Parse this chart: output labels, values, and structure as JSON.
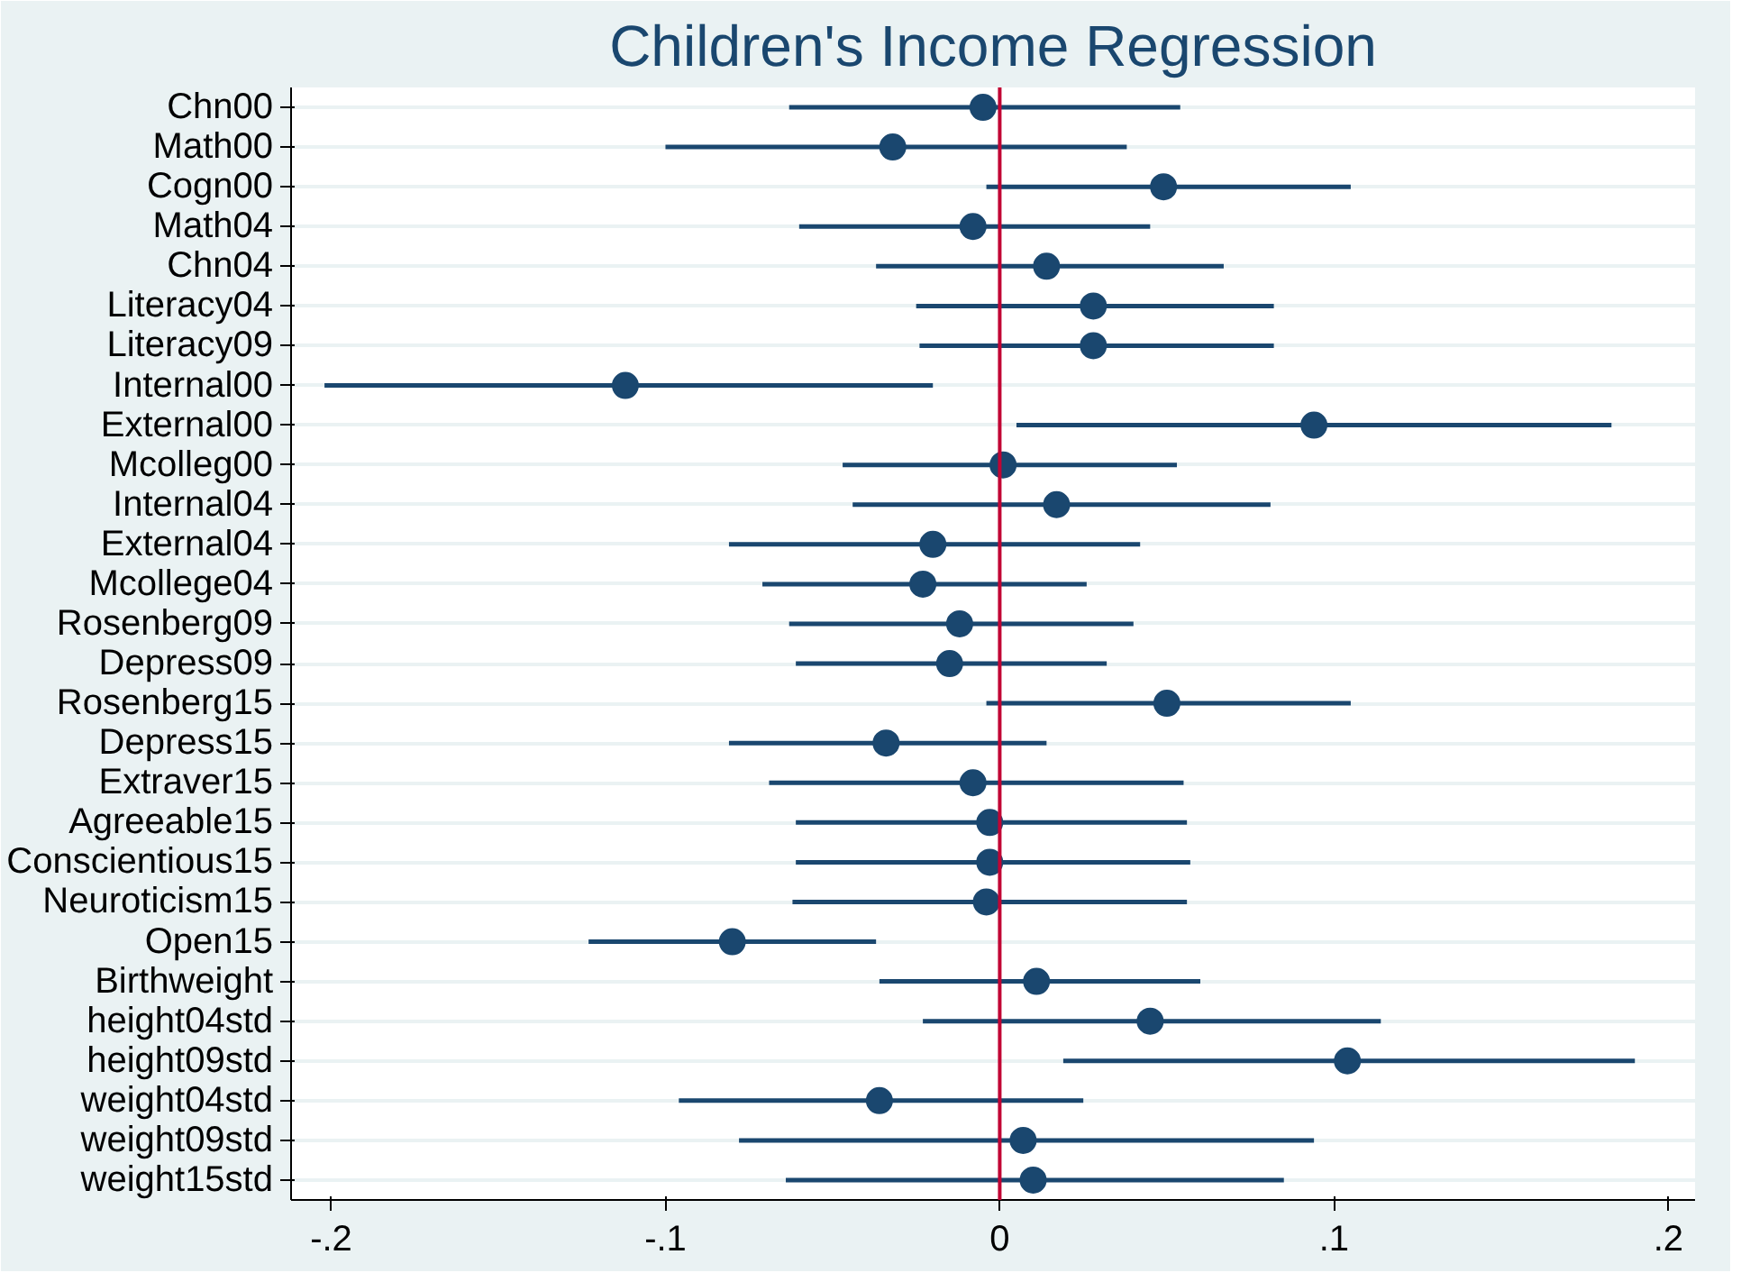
{
  "chart_data": {
    "type": "scatter",
    "orientation": "horizontal",
    "title": "Children's Income Regression",
    "categories": [
      "Chn00",
      "Math00",
      "Cogn00",
      "Math04",
      "Chn04",
      "Literacy04",
      "Literacy09",
      "Internal00",
      "External00",
      "Mcolleg00",
      "Internal04",
      "External04",
      "Mcollege04",
      "Rosenberg09",
      "Depress09",
      "Rosenberg15",
      "Depress15",
      "Extraver15",
      "Agreeable15",
      "Conscientious15",
      "Neuroticism15",
      "Open15",
      "Birthweight",
      "height04std",
      "height09std",
      "weight04std",
      "weight09std",
      "weight15std"
    ],
    "values": [
      -0.005,
      -0.032,
      0.049,
      -0.008,
      0.014,
      0.028,
      0.028,
      -0.112,
      0.094,
      0.001,
      0.017,
      -0.02,
      -0.023,
      -0.012,
      -0.015,
      0.05,
      -0.034,
      -0.008,
      -0.003,
      -0.003,
      -0.004,
      -0.08,
      0.011,
      0.045,
      0.104,
      -0.036,
      0.007,
      0.01
    ],
    "errors": [
      [
        -0.063,
        0.054
      ],
      [
        -0.1,
        0.038
      ],
      [
        -0.004,
        0.105
      ],
      [
        -0.06,
        0.045
      ],
      [
        -0.037,
        0.067
      ],
      [
        -0.025,
        0.082
      ],
      [
        -0.024,
        0.082
      ],
      [
        -0.202,
        -0.02
      ],
      [
        0.005,
        0.183
      ],
      [
        -0.047,
        0.053
      ],
      [
        -0.044,
        0.081
      ],
      [
        -0.081,
        0.042
      ],
      [
        -0.071,
        0.026
      ],
      [
        -0.063,
        0.04
      ],
      [
        -0.061,
        0.032
      ],
      [
        -0.004,
        0.105
      ],
      [
        -0.081,
        0.014
      ],
      [
        -0.069,
        0.055
      ],
      [
        -0.061,
        0.056
      ],
      [
        -0.061,
        0.057
      ],
      [
        -0.062,
        0.056
      ],
      [
        -0.123,
        -0.037
      ],
      [
        -0.036,
        0.06
      ],
      [
        -0.023,
        0.114
      ],
      [
        0.019,
        0.19
      ],
      [
        -0.096,
        0.025
      ],
      [
        -0.078,
        0.094
      ],
      [
        -0.064,
        0.085
      ]
    ],
    "color": "#1a476f",
    "marker": "circle",
    "grid": "y",
    "xlim": [
      -0.212,
      0.208
    ],
    "xticks": [
      {
        "value": -0.2,
        "label": "-.2"
      },
      {
        "value": -0.1,
        "label": "-.1"
      },
      0,
      {
        "value": 0.1,
        "label": ".1"
      },
      {
        "value": 0.2,
        "label": ".2"
      }
    ],
    "ref_lines": [
      {
        "axis": "x",
        "value": 0,
        "label": null,
        "color": "#c10534"
      }
    ]
  }
}
